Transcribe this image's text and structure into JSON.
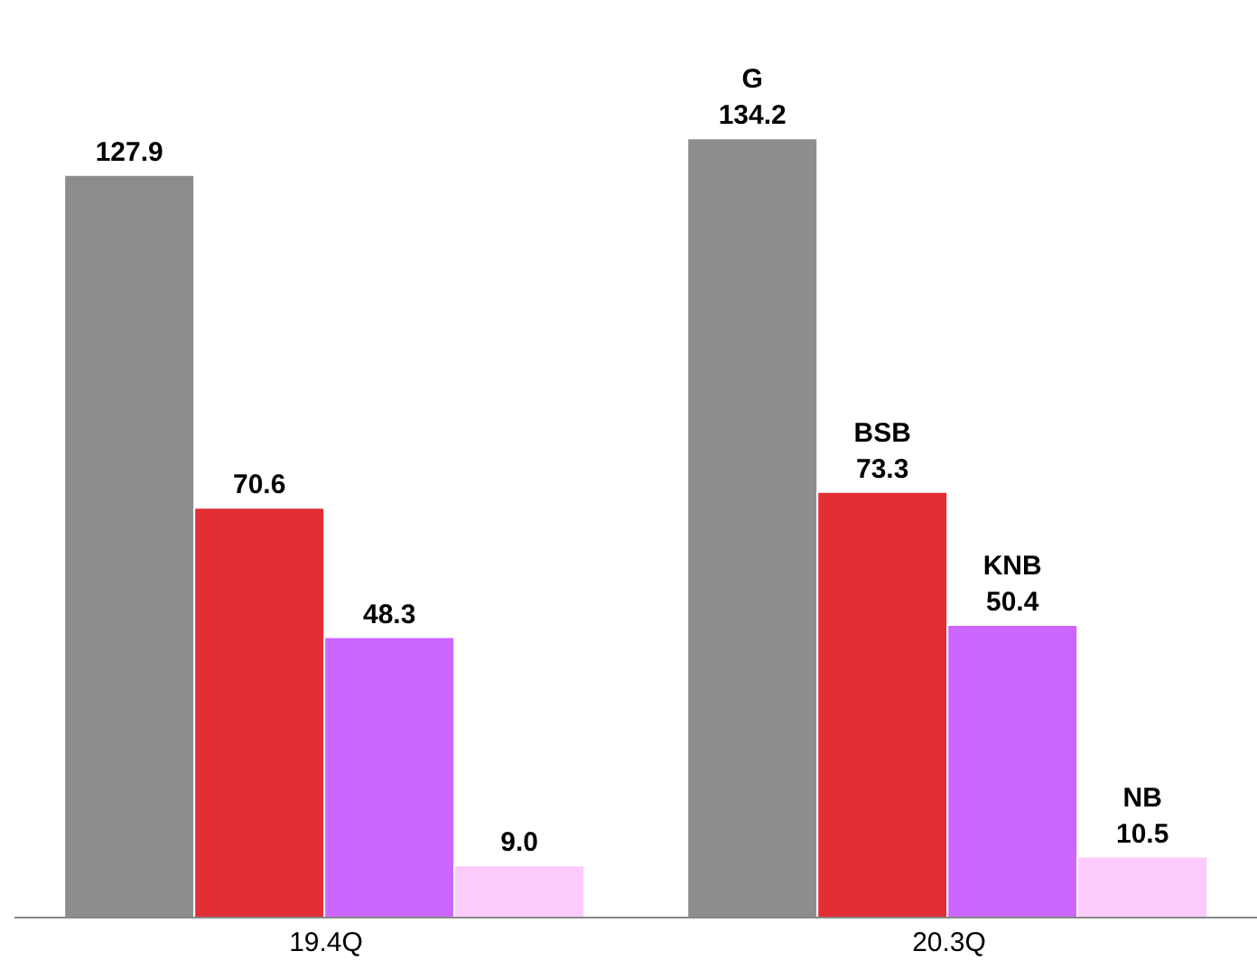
{
  "chart_data": {
    "type": "bar",
    "categories": [
      "19.4Q",
      "20.3Q"
    ],
    "series": [
      {
        "name": "G",
        "color": "#8c8d8f",
        "values": [
          127.9,
          134.2
        ],
        "value_labels": [
          "127.9",
          "134.2"
        ]
      },
      {
        "name": "BSB",
        "color": "#e32e36",
        "values": [
          70.6,
          73.3
        ],
        "value_labels": [
          "70.6",
          "73.3"
        ]
      },
      {
        "name": "KNB",
        "color": "#cc66ff",
        "values": [
          48.3,
          50.4
        ],
        "value_labels": [
          "48.3",
          "50.4"
        ]
      },
      {
        "name": "NB",
        "color": "#fccbfc",
        "values": [
          9.0,
          10.5
        ],
        "value_labels": [
          "9.0",
          "10.5"
        ]
      }
    ]
  }
}
